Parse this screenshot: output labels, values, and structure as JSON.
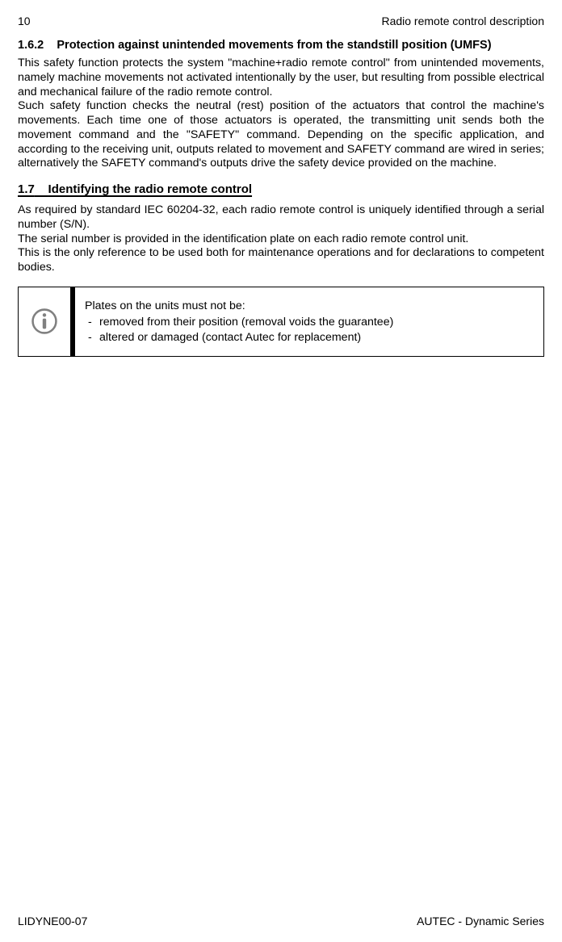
{
  "header": {
    "page_number": "10",
    "right_text": "Radio remote control description"
  },
  "section_162": {
    "number": "1.6.2",
    "title": "Protection against unintended movements from the standstill position (UMFS)",
    "paragraph": "This safety function protects the system \"machine+radio remote control\" from unintended movements, namely machine movements not activated intentionally by the user, but resulting from possible electrical and mechanical failure of the radio remote control.\nSuch safety function checks the neutral (rest) position of the actuators that control the machine's movements. Each time one of those actuators is operated, the transmitting unit sends both the movement command and the \"SAFETY\" command. Depending on the specific application, and according to the receiving unit, outputs related to movement and SAFETY command are wired in series; alternatively the SAFETY command's outputs drive the safety device provided on the machine."
  },
  "section_17": {
    "number": "1.7",
    "title": "Identifying the radio remote control",
    "paragraph": "As required by standard IEC 60204-32, each radio remote control is uniquely identified through a serial number (S/N).\nThe serial number is provided in the identification plate on each radio remote control unit.\nThis is the only reference to be used both for maintenance operations and for declarations to competent bodies."
  },
  "info_box": {
    "lead": "Plates on the units must not be:",
    "items": [
      "removed from their position (removal voids the guarantee)",
      "altered or damaged (contact Autec for replacement)"
    ]
  },
  "footer": {
    "left": "LIDYNE00-07",
    "right": "AUTEC - Dynamic Series"
  },
  "colors": {
    "text": "#000000",
    "background": "#ffffff",
    "border": "#000000",
    "icon_stroke": "#808080"
  }
}
